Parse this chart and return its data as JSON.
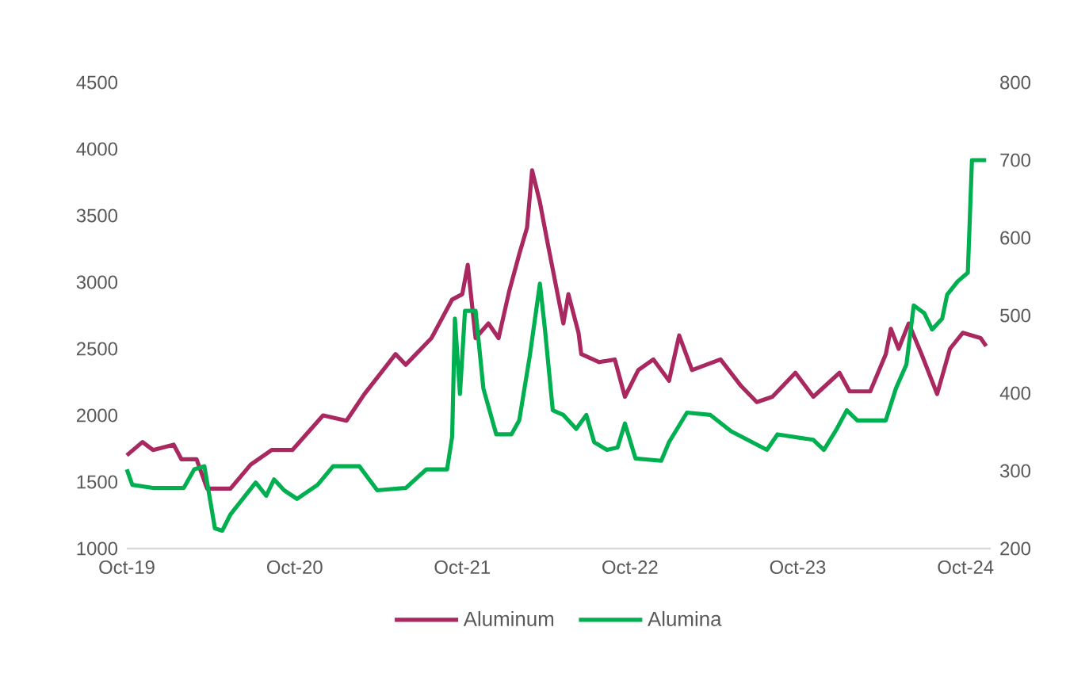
{
  "chart_data": {
    "type": "line",
    "xlim": [
      "2019-10-01",
      "2024-11-25"
    ],
    "xticks": [
      {
        "value": "2019-10-01",
        "label": "Oct-19"
      },
      {
        "value": "2020-10-01",
        "label": "Oct-20"
      },
      {
        "value": "2021-10-01",
        "label": "Oct-21"
      },
      {
        "value": "2022-10-01",
        "label": "Oct-22"
      },
      {
        "value": "2023-10-01",
        "label": "Oct-23"
      },
      {
        "value": "2024-10-01",
        "label": "Oct-24"
      }
    ],
    "ylim": [
      1000,
      4500
    ],
    "yticks": [
      1000,
      1500,
      2000,
      2500,
      3000,
      3500,
      4000,
      4500
    ],
    "y2lim": [
      200,
      800
    ],
    "y2ticks": [
      200,
      300,
      400,
      500,
      600,
      700,
      800
    ],
    "legend": "bottom",
    "series": [
      {
        "name": "Aluminum",
        "color": "#a8285f",
        "x": [
          "2019-10-01",
          "2019-11-04",
          "2019-11-27",
          "2020-01-11",
          "2020-01-28",
          "2020-03-01",
          "2020-03-24",
          "2020-05-14",
          "2020-06-27",
          "2020-08-12",
          "2020-09-26",
          "2020-12-02",
          "2021-01-22",
          "2021-03-02",
          "2021-05-09",
          "2021-05-31",
          "2021-07-26",
          "2021-09-09",
          "2021-10-01",
          "2021-10-13",
          "2021-10-30",
          "2021-11-27",
          "2021-12-19",
          "2022-01-11",
          "2022-02-02",
          "2022-02-19",
          "2022-03-02",
          "2022-03-19",
          "2022-04-05",
          "2022-05-09",
          "2022-05-20",
          "2022-06-11",
          "2022-06-17",
          "2022-07-26",
          "2022-08-29",
          "2022-09-20",
          "2022-10-19",
          "2022-11-21",
          "2022-12-25",
          "2023-01-16",
          "2023-02-13",
          "2023-04-16",
          "2023-05-31",
          "2023-07-04",
          "2023-08-07",
          "2023-09-26",
          "2023-11-04",
          "2023-12-31",
          "2024-01-22",
          "2024-03-07",
          "2024-04-10",
          "2024-04-21",
          "2024-05-08",
          "2024-05-30",
          "2024-06-27",
          "2024-07-31",
          "2024-08-28",
          "2024-09-25",
          "2024-11-03",
          "2024-11-15"
        ],
        "values": [
          1700,
          1800,
          1740,
          1780,
          1670,
          1670,
          1450,
          1450,
          1630,
          1740,
          1740,
          2000,
          1960,
          2160,
          2460,
          2380,
          2580,
          2870,
          2910,
          3130,
          2580,
          2690,
          2580,
          2930,
          3210,
          3410,
          3840,
          3600,
          3290,
          2690,
          2910,
          2620,
          2460,
          2400,
          2420,
          2140,
          2340,
          2420,
          2260,
          2600,
          2340,
          2420,
          2220,
          2100,
          2140,
          2320,
          2140,
          2320,
          2180,
          2180,
          2460,
          2650,
          2500,
          2690,
          2460,
          2160,
          2500,
          2620,
          2580,
          2520
        ]
      },
      {
        "name": "Alumina",
        "color": "#00b050",
        "axis": "y2",
        "x": [
          "2019-10-01",
          "2019-10-13",
          "2019-11-27",
          "2020-02-02",
          "2020-02-25",
          "2020-03-18",
          "2020-04-10",
          "2020-04-26",
          "2020-05-14",
          "2020-07-08",
          "2020-07-31",
          "2020-08-17",
          "2020-09-08",
          "2020-10-06",
          "2020-11-20",
          "2020-12-24",
          "2021-02-19",
          "2021-03-30",
          "2021-05-31",
          "2021-07-15",
          "2021-08-29",
          "2021-09-09",
          "2021-09-15",
          "2021-09-26",
          "2021-10-07",
          "2021-10-30",
          "2021-11-16",
          "2021-12-14",
          "2022-01-16",
          "2022-02-02",
          "2022-02-25",
          "2022-03-19",
          "2022-03-30",
          "2022-04-16",
          "2022-05-09",
          "2022-06-06",
          "2022-06-28",
          "2022-07-15",
          "2022-08-12",
          "2022-09-04",
          "2022-09-20",
          "2022-10-13",
          "2022-12-08",
          "2022-12-25",
          "2023-02-02",
          "2023-03-25",
          "2023-05-09",
          "2023-07-26",
          "2023-08-18",
          "2023-11-04",
          "2023-11-27",
          "2023-12-25",
          "2024-01-16",
          "2024-02-08",
          "2024-04-10",
          "2024-05-02",
          "2024-05-25",
          "2024-06-10",
          "2024-07-03",
          "2024-07-20",
          "2024-08-11",
          "2024-08-22",
          "2024-09-14",
          "2024-10-06",
          "2024-10-15",
          "2024-11-15"
        ],
        "values": [
          302,
          282,
          278,
          278,
          302,
          306,
          226,
          223,
          244,
          285,
          268,
          289,
          275,
          264,
          282,
          306,
          306,
          275,
          278,
          302,
          302,
          344,
          496,
          399,
          506,
          506,
          406,
          347,
          347,
          365,
          448,
          541,
          482,
          378,
          372,
          354,
          372,
          337,
          327,
          330,
          361,
          316,
          313,
          337,
          375,
          372,
          351,
          327,
          347,
          340,
          327,
          354,
          378,
          365,
          365,
          406,
          437,
          513,
          503,
          482,
          496,
          527,
          544,
          555,
          700,
          700
        ]
      }
    ]
  }
}
